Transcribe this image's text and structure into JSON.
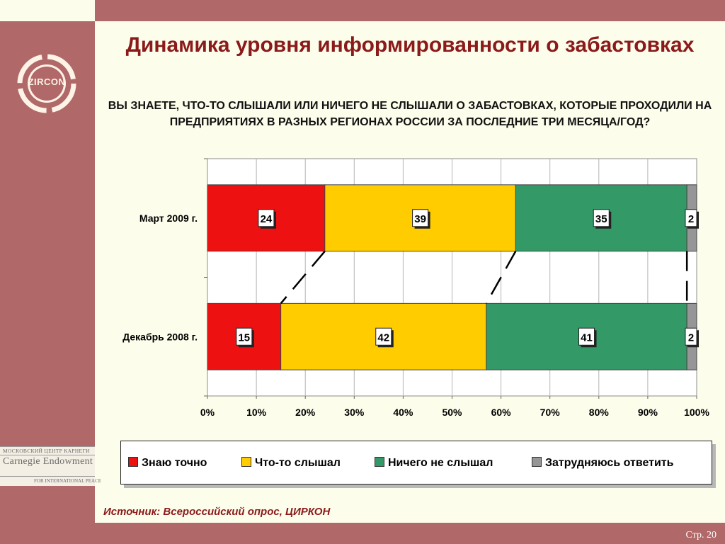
{
  "slide": {
    "title": "Динамика уровня информированности о забастовках",
    "question": "ВЫ ЗНАЕТЕ, ЧТО-ТО СЛЫШАЛИ ИЛИ НИЧЕГО НЕ СЛЫШАЛИ О ЗАБАСТОВКАХ, КОТОРЫЕ ПРОХОДИЛИ НА ПРЕДПРИЯТИЯХ В РАЗНЫХ РЕГИОНАХ РОССИИ ЗА ПОСЛЕДНИЕ ТРИ МЕСЯЦА/ГОД?",
    "source": "Источник: Всероссийский опрос, ЦИРКОН",
    "page": "Стр. 20"
  },
  "logos": {
    "zircon": "ZIRCON",
    "carnegie_line1": "МОСКОВСКИЙ ЦЕНТР КАРНЕГИ",
    "carnegie_line2": "Carnegie Endowment",
    "carnegie_line3": "FOR INTERNATIONAL PEACE"
  },
  "colors": {
    "frame": "#b06868",
    "background": "#fdfdeb",
    "title": "#8b1a1a",
    "know": "#ee1111",
    "heard": "#ffcc00",
    "not_heard": "#339966",
    "hard_to_say": "#969696"
  },
  "chart_data": {
    "type": "bar",
    "orientation": "horizontal",
    "stacked": "percent",
    "categories": [
      "Март 2009 г.",
      "Декабрь 2008 г."
    ],
    "series": [
      {
        "name": "Знаю точно",
        "values": [
          24,
          15
        ],
        "color": "#ee1111"
      },
      {
        "name": "Что-то слышал",
        "values": [
          39,
          42
        ],
        "color": "#ffcc00"
      },
      {
        "name": "Ничего не слышал",
        "values": [
          35,
          41
        ],
        "color": "#339966"
      },
      {
        "name": "Затрудняюсь ответить",
        "values": [
          2,
          2
        ],
        "color": "#969696"
      }
    ],
    "x_ticks": [
      "0%",
      "10%",
      "20%",
      "30%",
      "40%",
      "50%",
      "60%",
      "70%",
      "80%",
      "90%",
      "100%"
    ],
    "xlim": [
      0,
      100
    ],
    "grid": true,
    "legend_position": "bottom"
  }
}
